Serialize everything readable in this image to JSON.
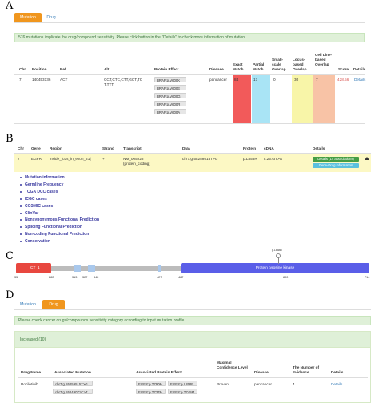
{
  "panels": {
    "a": "A",
    "b": "B",
    "c": "C",
    "d": "D"
  },
  "panelA": {
    "tabs": [
      {
        "label": "Mutation",
        "active": true
      },
      {
        "label": "Drug",
        "active": false
      }
    ],
    "alert": "576 mutations implicate the drug/compound sensitivity. Please click button in the \"Details\" to check more information of mutation",
    "headers": {
      "chr": "Chr",
      "position": "Position",
      "ref": "Ref",
      "alt": "Alt",
      "protein_effect": "Protein Effect",
      "disease": "Disease",
      "exact_match": "Exact Match",
      "partial_match": "Partial Match",
      "small_scale_overlap": "Small-scale Overlap",
      "locus_based_overlap": "Locus-based Overlap",
      "cell_line_based_overlap": "Cell Line-based Overlap",
      "score": "Score",
      "details": "Details"
    },
    "row": {
      "chr": "7",
      "position": "140453136",
      "ref": "ACT",
      "alt_line1": "CCT,CTC,CTT,GCT,TC",
      "alt_line2": "T,TTT",
      "protein_effects": [
        "BRAF:p.V600K",
        "BRAF:p.V600E",
        "BRAF:p.V600G",
        "BRAF:p.V600R",
        "BRAF:p.V600A"
      ],
      "disease": "pancancer",
      "exact_match": "84",
      "partial_match": "17",
      "small_scale_overlap": "0",
      "locus_based_overlap": "30",
      "cell_line_based_overlap": "7",
      "score": "428.56",
      "details": "Details"
    },
    "colors": {
      "exact": "#f25a5a",
      "partial": "#a9e4f5",
      "locus": "#f8f5a8",
      "cellline": "#f8c3a6",
      "score": "#d9534f"
    }
  },
  "panelB": {
    "headers": {
      "chr": "Chr",
      "gene": "Gene",
      "region": "Region",
      "strand": "Strand",
      "transcript": "Transcript",
      "dna": "DNA",
      "protein": "Protein",
      "cdna": "cDNA",
      "details": "Details"
    },
    "row": {
      "chr": "7",
      "gene": "EGFR",
      "region": "inside_[cds_in_exon_21]",
      "strand": "+",
      "transcript_line1": "NM_005228",
      "transcript_line2": "(protein_coding)",
      "dna": "chr7:g.55259515T>G",
      "protein": "p.L858R",
      "cdna": "c.2573T>G",
      "details_btn": "Details (14 associations)",
      "gene_drug_btn": "Gene-Drug information"
    },
    "menu": [
      "Mutation information",
      "Germline Frequency",
      "TCGA DCC cases",
      "ICGC cases",
      "COSMIC cases",
      "ClinVar",
      "Nonsynonymous Functional Prediction",
      "Splicing Functional Prediction",
      "Non-coding Functional Prediction",
      "Conservation"
    ]
  },
  "panelC": {
    "domains": [
      {
        "label": "CT_1"
      },
      {
        "label": "Protein tyrosine kinase"
      }
    ],
    "ticks": [
      "35",
      "282",
      "313",
      "327",
      "342",
      "427",
      "487",
      "800",
      "714"
    ],
    "lollipop": "p.L858R",
    "colors": {
      "ct1": "#e8473f",
      "ptk": "#5a5ee8",
      "bar": "#bcbcbc",
      "small": "#a9c8ec"
    }
  },
  "panelD": {
    "tabs": [
      {
        "label": "Mutation",
        "active": false
      },
      {
        "label": "Drug",
        "active": true
      }
    ],
    "alert": "Please check cancer drugs/compounds sensitivity category according to input mutation profile",
    "increased": "Increased (10)",
    "headers": {
      "drug_name": "Drug Name",
      "associated_mutation": "Associated Mutation",
      "associated_protein_effect": "Associated Protein Effect",
      "maximal_confidence_level": "Maximal Confidence Level",
      "disease": "Disease",
      "number_of_evidence": "The Number of Evidence",
      "details": "Details"
    },
    "row": {
      "drug_name": "Rociletinib",
      "mutations": [
        "chr7:g.55259515T>G",
        "chr7:g.55249071C>T"
      ],
      "protein_effects": [
        "EGFR:p.T790M",
        "EGFR:p.L858R",
        "EGFR:p.T737M",
        "EGFR:p.T745M"
      ],
      "confidence": "Proven",
      "disease": "pancancer",
      "evidence": "4",
      "details": "Details"
    }
  }
}
